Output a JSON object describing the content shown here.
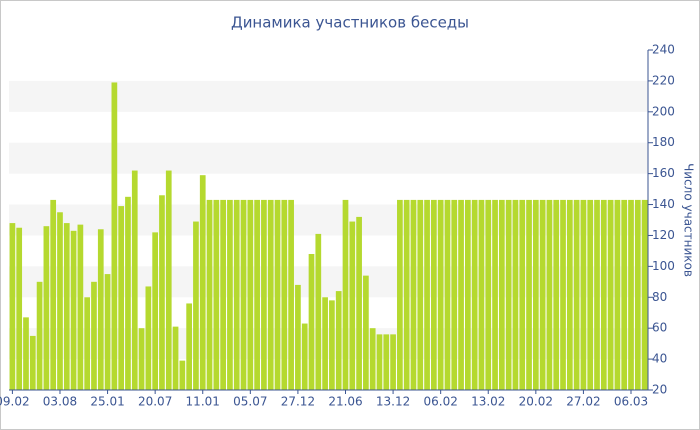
{
  "chart_data": {
    "type": "bar",
    "title": "Динамика участников беседы",
    "y_label": "Число участников",
    "categories": [
      "09.02",
      null,
      null,
      null,
      null,
      null,
      null,
      "03.08",
      null,
      null,
      null,
      null,
      null,
      null,
      "25.01",
      null,
      null,
      null,
      null,
      null,
      null,
      "20.07",
      null,
      null,
      null,
      null,
      null,
      null,
      "11.01",
      null,
      null,
      null,
      null,
      null,
      null,
      "05.07",
      null,
      null,
      null,
      null,
      null,
      null,
      "27.12",
      null,
      null,
      null,
      null,
      null,
      null,
      "21.06",
      null,
      null,
      null,
      null,
      null,
      null,
      "13.12",
      null,
      null,
      null,
      null,
      null,
      null,
      "06.02",
      null,
      null,
      null,
      null,
      null,
      null,
      "13.02",
      null,
      null,
      null,
      null,
      null,
      null,
      "20.02",
      null,
      null,
      null,
      null,
      null,
      null,
      "27.02",
      null,
      null,
      null,
      null,
      null,
      null,
      "06.03",
      null,
      null
    ],
    "values": [
      128,
      125,
      67,
      55,
      90,
      126,
      143,
      135,
      128,
      123,
      127,
      80,
      90,
      124,
      95,
      219,
      139,
      145,
      162,
      60,
      87,
      122,
      146,
      162,
      61,
      39,
      76,
      129,
      159,
      143,
      143,
      143,
      143,
      143,
      143,
      143,
      143,
      143,
      143,
      143,
      143,
      143,
      88,
      63,
      108,
      121,
      80,
      78,
      84,
      143,
      129,
      132,
      94,
      60,
      56,
      56,
      56,
      143,
      143,
      143,
      143,
      143,
      143,
      143,
      143,
      143,
      143,
      143,
      143,
      143,
      143,
      143,
      143,
      143,
      143,
      143,
      143,
      143,
      143,
      143,
      143,
      143,
      143,
      143,
      143,
      143,
      143,
      143,
      143,
      143,
      143,
      143,
      143,
      143
    ],
    "color": "#b5d92f",
    "ylim": [
      20,
      240
    ],
    "yticks": [
      20,
      40,
      60,
      80,
      100,
      120,
      140,
      160,
      180,
      200,
      220,
      240
    ],
    "grid": true
  }
}
